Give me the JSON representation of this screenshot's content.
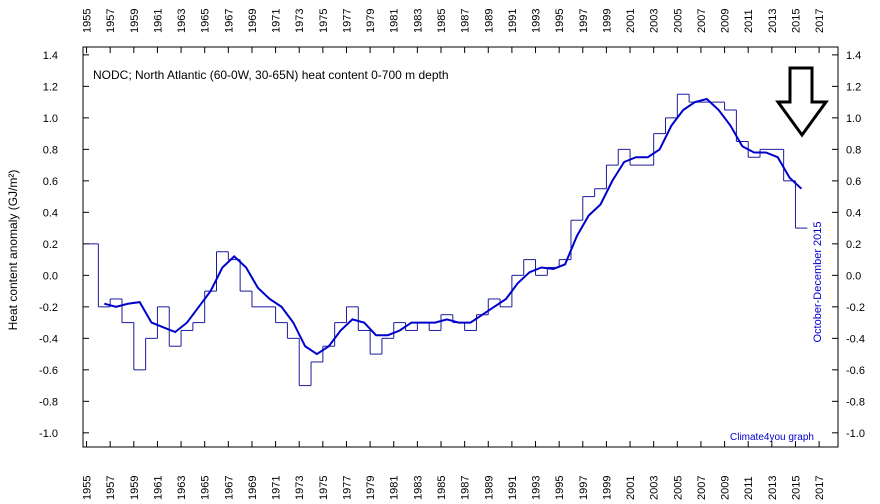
{
  "chart_data": {
    "type": "line",
    "title": "NODC; North Atlantic (60-0W, 30-65N) heat content 0-700 m depth",
    "y_label": "Heat content anomaly (GJ/m²)",
    "annotations": [
      "October-December 2015",
      "Climate4you graph"
    ],
    "x": [
      1955,
      1956,
      1957,
      1958,
      1959,
      1960,
      1961,
      1962,
      1963,
      1964,
      1965,
      1966,
      1967,
      1968,
      1969,
      1970,
      1971,
      1972,
      1973,
      1974,
      1975,
      1976,
      1977,
      1978,
      1979,
      1980,
      1981,
      1982,
      1983,
      1984,
      1985,
      1986,
      1987,
      1988,
      1989,
      1990,
      1991,
      1992,
      1993,
      1994,
      1995,
      1996,
      1997,
      1998,
      1999,
      2000,
      2001,
      2002,
      2003,
      2004,
      2005,
      2006,
      2007,
      2008,
      2009,
      2010,
      2011,
      2012,
      2013,
      2014,
      2015
    ],
    "series": [
      {
        "color": "#1a1a9c",
        "values": [
          0.2,
          -0.2,
          -0.15,
          -0.3,
          -0.6,
          -0.4,
          -0.2,
          -0.45,
          -0.35,
          -0.3,
          -0.1,
          0.15,
          0.1,
          -0.1,
          -0.2,
          -0.2,
          -0.3,
          -0.4,
          -0.7,
          -0.55,
          -0.45,
          -0.3,
          -0.2,
          -0.35,
          -0.5,
          -0.4,
          -0.3,
          -0.35,
          -0.3,
          -0.35,
          -0.25,
          -0.3,
          -0.35,
          -0.25,
          -0.15,
          -0.2,
          0.0,
          0.1,
          0.0,
          0.05,
          0.1,
          0.35,
          0.5,
          0.55,
          0.7,
          0.8,
          0.7,
          0.7,
          0.9,
          1.0,
          1.15,
          1.1,
          1.1,
          1.1,
          1.05,
          0.85,
          0.75,
          0.8,
          0.8,
          0.6,
          0.3
        ]
      },
      {
        "color": "#0000cc",
        "values": [
          null,
          -0.18,
          -0.2,
          -0.18,
          -0.17,
          -0.3,
          -0.33,
          -0.36,
          -0.3,
          -0.2,
          -0.1,
          0.05,
          0.12,
          0.05,
          -0.08,
          -0.15,
          -0.2,
          -0.3,
          -0.45,
          -0.5,
          -0.45,
          -0.35,
          -0.28,
          -0.3,
          -0.38,
          -0.38,
          -0.35,
          -0.3,
          -0.3,
          -0.3,
          -0.28,
          -0.3,
          -0.3,
          -0.25,
          -0.2,
          -0.15,
          -0.05,
          0.02,
          0.05,
          0.04,
          0.07,
          0.25,
          0.38,
          0.45,
          0.6,
          0.72,
          0.75,
          0.75,
          0.8,
          0.95,
          1.05,
          1.1,
          1.12,
          1.05,
          0.95,
          0.82,
          0.78,
          0.78,
          0.75,
          0.62,
          0.55
        ]
      }
    ],
    "xlim": [
      1954.7,
      2018.6
    ],
    "xticks": [
      1955,
      1957,
      1959,
      1961,
      1963,
      1965,
      1967,
      1969,
      1971,
      1973,
      1975,
      1977,
      1979,
      1981,
      1983,
      1985,
      1987,
      1989,
      1991,
      1993,
      1995,
      1997,
      1999,
      2001,
      2003,
      2005,
      2007,
      2009,
      2011,
      2013,
      2015,
      2017
    ],
    "ylim": [
      -1.09,
      1.45
    ],
    "yticks": [
      {
        "value": -1,
        "label": "-1.0"
      },
      -0.8,
      -0.6,
      -0.4,
      -0.2,
      {
        "value": 0,
        "label": "0.0"
      },
      0.2,
      0.4,
      0.6,
      0.8,
      {
        "value": 1,
        "label": "1.0"
      },
      1.2,
      1.4
    ]
  }
}
